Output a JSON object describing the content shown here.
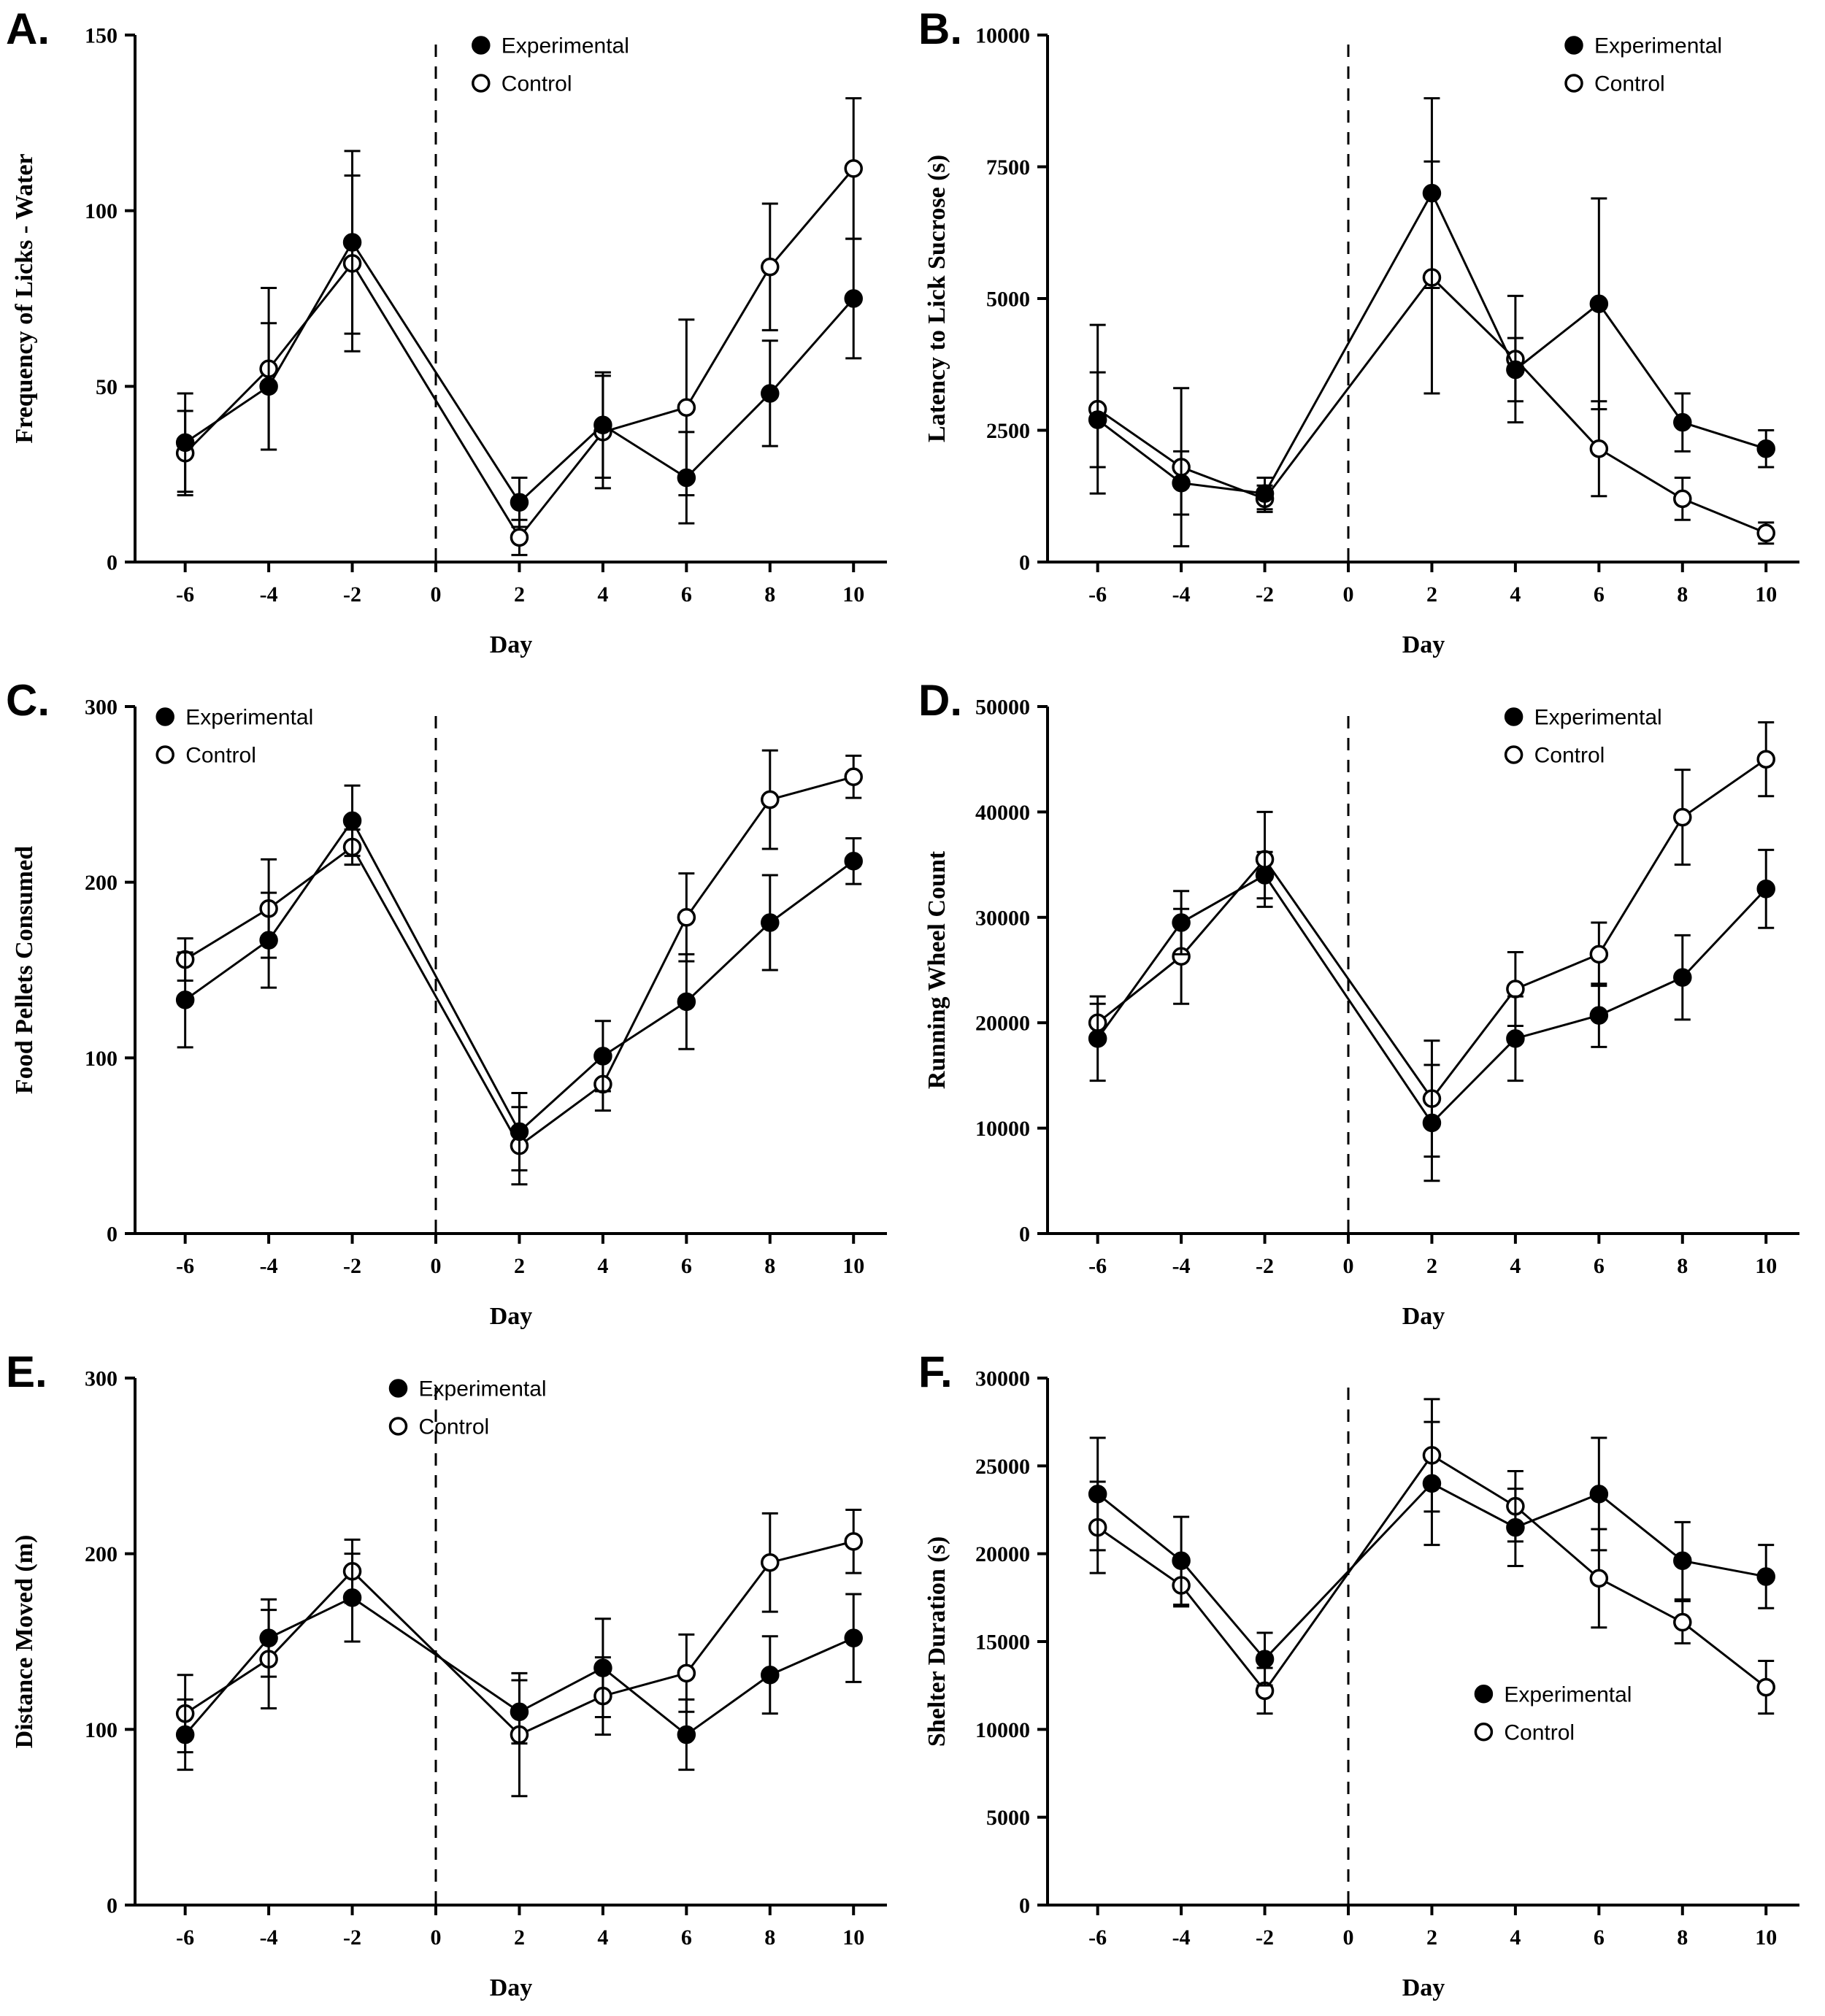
{
  "figure": {
    "name": "six-panel-behavior-figure",
    "line_color": "#000000",
    "background": "#ffffff",
    "intervention_line_x": 0
  },
  "chart_data": [
    {
      "panel": "A.",
      "type": "line",
      "xlabel": "Day",
      "ylabel": "Frequency of Licks - Water",
      "xlim": [
        -7.2,
        10.8
      ],
      "ylim": [
        0,
        150
      ],
      "xticks": [
        -6,
        -4,
        -2,
        0,
        2,
        4,
        6,
        8,
        10
      ],
      "yticks": [
        0,
        50,
        100,
        150
      ],
      "vline_x": 0,
      "x": [
        -6,
        -4,
        -2,
        2,
        4,
        6,
        8,
        10
      ],
      "legend_pos": [
        0.46,
        0.0
      ],
      "series": [
        {
          "name": "Experimental",
          "marker": "filled-circle",
          "values": [
            34,
            50,
            91,
            17,
            39,
            24,
            48,
            75
          ],
          "errors": [
            14,
            18,
            26,
            7,
            15,
            13,
            15,
            17
          ]
        },
        {
          "name": "Control",
          "marker": "open-circle",
          "values": [
            31,
            55,
            85,
            7,
            37,
            44,
            84,
            112
          ],
          "errors": [
            12,
            23,
            25,
            5,
            16,
            25,
            18,
            20
          ]
        }
      ]
    },
    {
      "panel": "B.",
      "type": "line",
      "xlabel": "Day",
      "ylabel": "Latency to Lick Sucrose (s)",
      "xlim": [
        -7.2,
        10.8
      ],
      "ylim": [
        0,
        10000
      ],
      "xticks": [
        -6,
        -4,
        -2,
        0,
        2,
        4,
        6,
        8,
        10
      ],
      "yticks": [
        0,
        2500,
        5000,
        7500,
        10000
      ],
      "vline_x": 0,
      "x": [
        -6,
        -4,
        -2,
        2,
        4,
        6,
        8,
        10
      ],
      "legend_pos": [
        0.7,
        0.0
      ],
      "series": [
        {
          "name": "Experimental",
          "marker": "filled-circle",
          "values": [
            2700,
            1500,
            1300,
            7000,
            3650,
            4900,
            2650,
            2150
          ],
          "errors": [
            900,
            600,
            300,
            1800,
            600,
            2000,
            550,
            350
          ]
        },
        {
          "name": "Control",
          "marker": "open-circle",
          "values": [
            2900,
            1800,
            1200,
            5400,
            3850,
            2150,
            1200,
            550
          ],
          "errors": [
            1600,
            1500,
            250,
            2200,
            1200,
            900,
            400,
            200
          ]
        }
      ]
    },
    {
      "panel": "C.",
      "type": "line",
      "xlabel": "Day",
      "ylabel": "Food Pellets Consumed",
      "xlim": [
        -7.2,
        10.8
      ],
      "ylim": [
        0,
        300
      ],
      "xticks": [
        -6,
        -4,
        -2,
        0,
        2,
        4,
        6,
        8,
        10
      ],
      "yticks": [
        0,
        100,
        200,
        300
      ],
      "vline_x": 0,
      "x": [
        -6,
        -4,
        -2,
        2,
        4,
        6,
        8,
        10
      ],
      "legend_pos": [
        0.04,
        0.0
      ],
      "series": [
        {
          "name": "Experimental",
          "marker": "filled-circle",
          "values": [
            133,
            167,
            235,
            58,
            101,
            132,
            177,
            212
          ],
          "errors": [
            27,
            27,
            20,
            22,
            20,
            27,
            27,
            13
          ]
        },
        {
          "name": "Control",
          "marker": "open-circle",
          "values": [
            156,
            185,
            220,
            50,
            85,
            180,
            247,
            260
          ],
          "errors": [
            12,
            28,
            10,
            22,
            15,
            25,
            28,
            12
          ]
        }
      ]
    },
    {
      "panel": "D.",
      "type": "line",
      "xlabel": "Day",
      "ylabel": "Running Wheel Count",
      "xlim": [
        -7.2,
        10.8
      ],
      "ylim": [
        0,
        50000
      ],
      "xticks": [
        -6,
        -4,
        -2,
        0,
        2,
        4,
        6,
        8,
        10
      ],
      "yticks": [
        0,
        10000,
        20000,
        30000,
        40000,
        50000
      ],
      "vline_x": 0,
      "x": [
        -6,
        -4,
        -2,
        2,
        4,
        6,
        8,
        10
      ],
      "legend_pos": [
        0.62,
        0.0
      ],
      "series": [
        {
          "name": "Experimental",
          "marker": "filled-circle",
          "values": [
            18500,
            29500,
            34000,
            10500,
            18500,
            20700,
            24300,
            32700
          ],
          "errors": [
            4000,
            3000,
            2200,
            5500,
            4000,
            3000,
            4000,
            3700
          ]
        },
        {
          "name": "Control",
          "marker": "open-circle",
          "values": [
            20000,
            26300,
            35500,
            12800,
            23200,
            26500,
            39500,
            45000
          ],
          "errors": [
            1800,
            4500,
            4500,
            5500,
            3500,
            3000,
            4500,
            3500
          ]
        }
      ]
    },
    {
      "panel": "E.",
      "type": "line",
      "xlabel": "Day",
      "ylabel": "Distance Moved (m)",
      "xlim": [
        -7.2,
        10.8
      ],
      "ylim": [
        0,
        300
      ],
      "xticks": [
        -6,
        -4,
        -2,
        0,
        2,
        4,
        6,
        8,
        10
      ],
      "yticks": [
        0,
        100,
        200,
        300
      ],
      "vline_x": 0,
      "x": [
        -6,
        -4,
        -2,
        2,
        4,
        6,
        8,
        10
      ],
      "legend_pos": [
        0.35,
        0.0
      ],
      "series": [
        {
          "name": "Experimental",
          "marker": "filled-circle",
          "values": [
            97,
            152,
            175,
            110,
            135,
            97,
            131,
            152
          ],
          "errors": [
            20,
            22,
            25,
            18,
            28,
            20,
            22,
            25
          ]
        },
        {
          "name": "Control",
          "marker": "open-circle",
          "values": [
            109,
            140,
            190,
            97,
            119,
            132,
            195,
            207
          ],
          "errors": [
            22,
            28,
            18,
            35,
            22,
            22,
            28,
            18
          ]
        }
      ]
    },
    {
      "panel": "F.",
      "type": "line",
      "xlabel": "Day",
      "ylabel": "Shelter Duration (s)",
      "xlim": [
        -7.2,
        10.8
      ],
      "ylim": [
        0,
        30000
      ],
      "xticks": [
        -6,
        -4,
        -2,
        0,
        2,
        4,
        6,
        8,
        10
      ],
      "yticks": [
        0,
        5000,
        10000,
        15000,
        20000,
        25000,
        30000
      ],
      "vline_x": 0,
      "x": [
        -6,
        -4,
        -2,
        2,
        4,
        6,
        8,
        10
      ],
      "legend_pos": [
        0.58,
        0.58
      ],
      "series": [
        {
          "name": "Experimental",
          "marker": "filled-circle",
          "values": [
            23400,
            19600,
            14000,
            24000,
            21500,
            23400,
            19600,
            18700
          ],
          "errors": [
            3200,
            2500,
            1500,
            3500,
            2200,
            3200,
            2200,
            1800
          ]
        },
        {
          "name": "Control",
          "marker": "open-circle",
          "values": [
            21500,
            18200,
            12200,
            25600,
            22700,
            18600,
            16100,
            12400
          ],
          "errors": [
            2600,
            1200,
            1300,
            3200,
            2000,
            2800,
            1200,
            1500
          ]
        }
      ]
    }
  ]
}
